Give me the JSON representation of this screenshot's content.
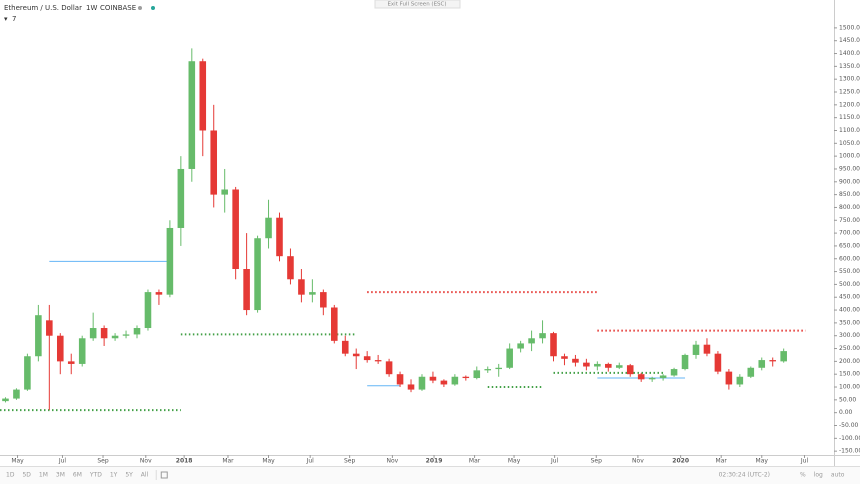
{
  "header": {
    "symbol": "Ethereum / U.S. Dollar",
    "interval": "1W",
    "exchange": "COINBASE",
    "indicator_count": "7"
  },
  "exit_button": "Exit Full Screen (ESC)",
  "toolbar": {
    "ranges": [
      "1D",
      "5D",
      "1M",
      "3M",
      "6M",
      "YTD",
      "1Y",
      "5Y",
      "All"
    ],
    "time": "02:30:24 (UTC-2)",
    "scale_options": [
      "%",
      "log",
      "auto"
    ]
  },
  "chart_data": {
    "type": "candlestick",
    "up_color": "#66bb6a",
    "down_color": "#e53935",
    "ylim": [
      -165,
      1558
    ],
    "xlim": [
      -0.5,
      75.5
    ],
    "yticks": [
      {
        "value": -150,
        "label": "-150.00"
      },
      {
        "value": -100,
        "label": "-100.00"
      },
      {
        "value": -50,
        "label": "-50.00"
      },
      {
        "value": 0,
        "label": "0.00"
      },
      {
        "value": 50,
        "label": "50.00"
      },
      {
        "value": 100,
        "label": "100.00"
      },
      {
        "value": 150,
        "label": "150.00"
      },
      {
        "value": 200,
        "label": "200.00"
      },
      {
        "value": 250,
        "label": "250.00"
      },
      {
        "value": 300,
        "label": "300.00"
      },
      {
        "value": 350,
        "label": "350.00"
      },
      {
        "value": 400,
        "label": "400.00"
      },
      {
        "value": 450,
        "label": "450.00"
      },
      {
        "value": 500,
        "label": "500.00"
      },
      {
        "value": 550,
        "label": "550.00"
      },
      {
        "value": 600,
        "label": "600.00"
      },
      {
        "value": 650,
        "label": "650.00"
      },
      {
        "value": 700,
        "label": "700.00"
      },
      {
        "value": 750,
        "label": "750.00"
      },
      {
        "value": 800,
        "label": "800.00"
      },
      {
        "value": 850,
        "label": "850.00"
      },
      {
        "value": 900,
        "label": "900.00"
      },
      {
        "value": 950,
        "label": "950.00"
      },
      {
        "value": 1000,
        "label": "1000.00"
      },
      {
        "value": 1050,
        "label": "1050.00"
      },
      {
        "value": 1100,
        "label": "1100.00"
      },
      {
        "value": 1150,
        "label": "1150.00"
      },
      {
        "value": 1200,
        "label": "1200.00"
      },
      {
        "value": 1250,
        "label": "1250.00"
      },
      {
        "value": 1300,
        "label": "1300.00"
      },
      {
        "value": 1350,
        "label": "1350.00"
      },
      {
        "value": 1400,
        "label": "1400.00"
      },
      {
        "value": 1450,
        "label": "1450.00"
      },
      {
        "value": 1500,
        "label": "1500.00"
      }
    ],
    "xticks": [
      {
        "value": 1.1,
        "label": "May"
      },
      {
        "value": 5.2,
        "label": "Jul"
      },
      {
        "value": 8.9,
        "label": "Sep"
      },
      {
        "value": 12.8,
        "label": "Nov"
      },
      {
        "value": 16.3,
        "label": "2018"
      },
      {
        "value": 20.3,
        "label": "Mar"
      },
      {
        "value": 24,
        "label": "May"
      },
      {
        "value": 27.8,
        "label": "Jul"
      },
      {
        "value": 31.4,
        "label": "Sep"
      },
      {
        "value": 35.3,
        "label": "Nov"
      },
      {
        "value": 39.1,
        "label": "2019"
      },
      {
        "value": 42.8,
        "label": "Mar"
      },
      {
        "value": 46.4,
        "label": "May"
      },
      {
        "value": 50.1,
        "label": "Jul"
      },
      {
        "value": 53.9,
        "label": "Sep"
      },
      {
        "value": 57.7,
        "label": "Nov"
      },
      {
        "value": 61.6,
        "label": "2020"
      },
      {
        "value": 65.3,
        "label": "Mar"
      },
      {
        "value": 69,
        "label": "May"
      },
      {
        "value": 72.9,
        "label": "Jul"
      }
    ],
    "candles": [
      [
        45,
        60,
        40,
        55
      ],
      [
        55,
        95,
        50,
        90
      ],
      [
        90,
        230,
        85,
        220
      ],
      [
        220,
        420,
        200,
        380
      ],
      [
        360,
        420,
        10,
        300
      ],
      [
        300,
        310,
        150,
        200
      ],
      [
        200,
        230,
        150,
        190
      ],
      [
        190,
        300,
        180,
        290
      ],
      [
        290,
        390,
        280,
        330
      ],
      [
        330,
        340,
        260,
        290
      ],
      [
        290,
        310,
        280,
        300
      ],
      [
        300,
        320,
        290,
        305
      ],
      [
        305,
        340,
        290,
        330
      ],
      [
        330,
        480,
        320,
        470
      ],
      [
        470,
        480,
        420,
        460
      ],
      [
        460,
        750,
        450,
        720
      ],
      [
        720,
        1000,
        650,
        950
      ],
      [
        950,
        1420,
        900,
        1370
      ],
      [
        1370,
        1380,
        1000,
        1100
      ],
      [
        1100,
        1200,
        800,
        850
      ],
      [
        850,
        950,
        780,
        870
      ],
      [
        870,
        880,
        520,
        560
      ],
      [
        560,
        700,
        380,
        400
      ],
      [
        400,
        690,
        390,
        680
      ],
      [
        680,
        830,
        640,
        760
      ],
      [
        760,
        780,
        590,
        610
      ],
      [
        610,
        640,
        500,
        520
      ],
      [
        520,
        560,
        430,
        460
      ],
      [
        460,
        520,
        430,
        470
      ],
      [
        470,
        480,
        380,
        410
      ],
      [
        410,
        420,
        270,
        280
      ],
      [
        280,
        300,
        220,
        230
      ],
      [
        230,
        250,
        170,
        220
      ],
      [
        220,
        240,
        195,
        205
      ],
      [
        205,
        225,
        190,
        200
      ],
      [
        200,
        210,
        140,
        150
      ],
      [
        150,
        160,
        100,
        110
      ],
      [
        110,
        130,
        80,
        90
      ],
      [
        90,
        150,
        85,
        140
      ],
      [
        140,
        160,
        115,
        125
      ],
      [
        125,
        130,
        100,
        110
      ],
      [
        110,
        150,
        105,
        140
      ],
      [
        140,
        145,
        125,
        135
      ],
      [
        135,
        180,
        130,
        165
      ],
      [
        165,
        180,
        155,
        170
      ],
      [
        170,
        190,
        140,
        175
      ],
      [
        175,
        270,
        170,
        250
      ],
      [
        250,
        280,
        235,
        270
      ],
      [
        270,
        320,
        240,
        290
      ],
      [
        290,
        360,
        270,
        310
      ],
      [
        310,
        315,
        200,
        220
      ],
      [
        220,
        230,
        185,
        210
      ],
      [
        210,
        225,
        180,
        195
      ],
      [
        195,
        210,
        165,
        180
      ],
      [
        180,
        200,
        165,
        190
      ],
      [
        190,
        195,
        160,
        175
      ],
      [
        175,
        195,
        170,
        185
      ],
      [
        185,
        190,
        140,
        150
      ],
      [
        150,
        155,
        120,
        130
      ],
      [
        130,
        140,
        120,
        135
      ],
      [
        135,
        150,
        125,
        145
      ],
      [
        145,
        175,
        140,
        170
      ],
      [
        170,
        230,
        165,
        225
      ],
      [
        225,
        280,
        210,
        265
      ],
      [
        265,
        290,
        220,
        230
      ],
      [
        230,
        240,
        150,
        160
      ],
      [
        160,
        170,
        90,
        110
      ],
      [
        110,
        150,
        100,
        140
      ],
      [
        140,
        180,
        135,
        175
      ],
      [
        175,
        215,
        165,
        205
      ],
      [
        205,
        215,
        180,
        200
      ],
      [
        200,
        250,
        195,
        240
      ]
    ],
    "levels": [
      {
        "value": 590,
        "from": 4,
        "to": 15,
        "color": "#64b5f6",
        "style": "solid"
      },
      {
        "value": 10,
        "from": -0.5,
        "to": 16,
        "color": "#43a047",
        "style": "dotted"
      },
      {
        "value": 305,
        "from": 16,
        "to": 32,
        "color": "#43a047",
        "style": "dotted"
      },
      {
        "value": 470,
        "from": 33,
        "to": 54,
        "color": "#e53935",
        "style": "dotted"
      },
      {
        "value": 105,
        "from": 33,
        "to": 36,
        "color": "#64b5f6",
        "style": "solid"
      },
      {
        "value": 100,
        "from": 44,
        "to": 49,
        "color": "#43a047",
        "style": "dotted"
      },
      {
        "value": 155,
        "from": 50,
        "to": 60,
        "color": "#43a047",
        "style": "dotted"
      },
      {
        "value": 320,
        "from": 54,
        "to": 73,
        "color": "#e53935",
        "style": "dotted"
      },
      {
        "value": 135,
        "from": 54,
        "to": 62,
        "color": "#64b5f6",
        "style": "solid"
      }
    ]
  }
}
